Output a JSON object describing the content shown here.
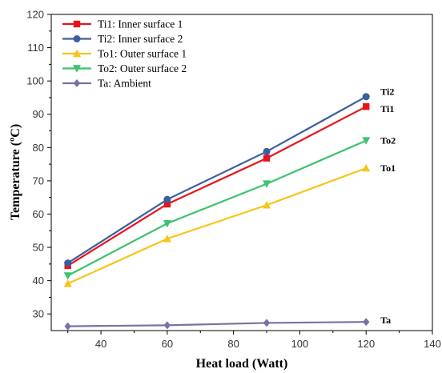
{
  "chart_data": {
    "type": "line",
    "xlabel": "Heat load (Watt)",
    "ylabel": "Temperature (ºC)",
    "xlim": [
      25,
      140
    ],
    "ylim": [
      25,
      120
    ],
    "x_ticks": [
      40,
      60,
      80,
      100,
      120,
      140
    ],
    "y_ticks": [
      30,
      40,
      50,
      60,
      70,
      80,
      90,
      100,
      110,
      120
    ],
    "grid": false,
    "legend_position": "top-left",
    "x": [
      30,
      60,
      90,
      120
    ],
    "series": [
      {
        "key": "ti1",
        "name": "Ti1: Inner surface 1",
        "end_label": "Ti1",
        "color": "#e8141c",
        "marker": "square",
        "values": [
          44.5,
          63.0,
          76.8,
          92.3
        ]
      },
      {
        "key": "ti2",
        "name": "Ti2: Inner surface 2",
        "end_label": "Ti2",
        "color": "#3a5f9e",
        "marker": "circle",
        "values": [
          45.3,
          64.4,
          78.8,
          95.3
        ]
      },
      {
        "key": "to1",
        "name": "To1: Outer surface 1",
        "end_label": "To1",
        "color": "#f5c518",
        "marker": "triangle-up",
        "values": [
          39.1,
          52.6,
          62.7,
          73.8
        ]
      },
      {
        "key": "to2",
        "name": "To2: Outer surface 2",
        "end_label": "To2",
        "color": "#3dc26e",
        "marker": "triangle-down",
        "values": [
          41.5,
          57.2,
          69.1,
          82.1
        ]
      },
      {
        "key": "ta",
        "name": "Ta: Ambient",
        "end_label": "Ta",
        "color": "#7b6fa8",
        "marker": "diamond",
        "values": [
          26.3,
          26.6,
          27.3,
          27.6
        ]
      }
    ]
  }
}
